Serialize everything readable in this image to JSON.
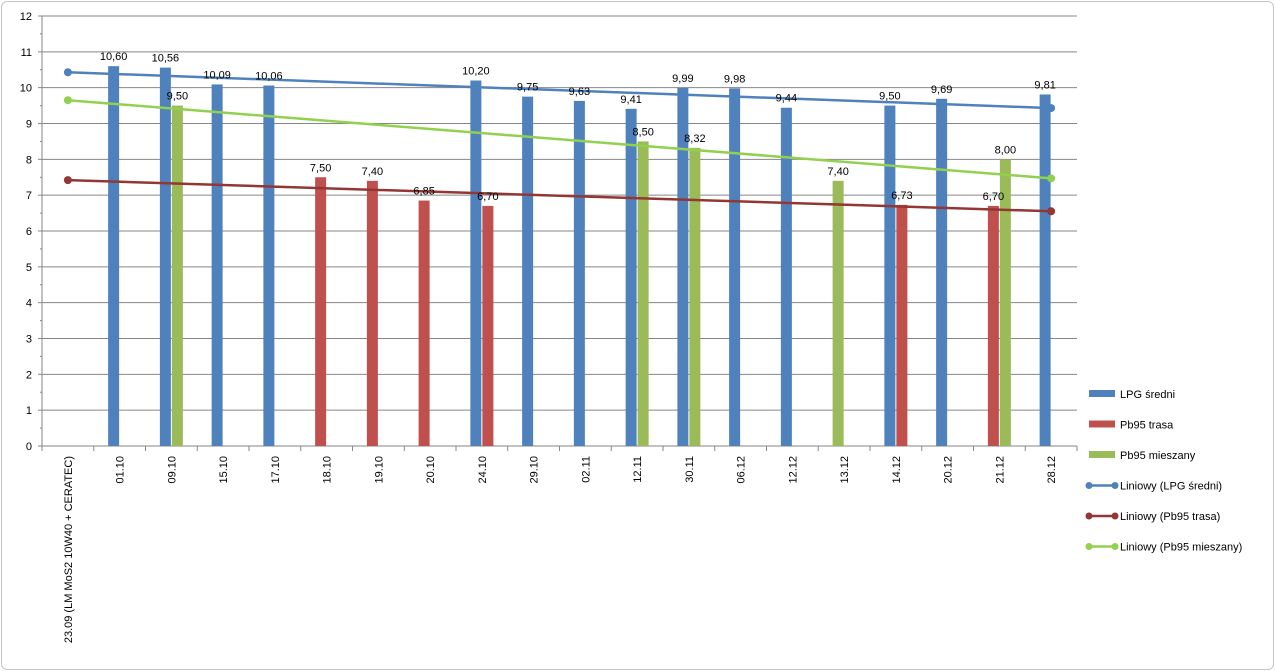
{
  "chart_data": {
    "type": "bar",
    "title": "",
    "xlabel": "",
    "ylabel": "",
    "ylim": [
      0,
      12
    ],
    "yticks": [
      0,
      1,
      2,
      3,
      4,
      5,
      6,
      7,
      8,
      9,
      10,
      11,
      12
    ],
    "ytick_labels": [
      "0",
      "1",
      "2",
      "3",
      "4",
      "5",
      "6",
      "7",
      "8",
      "9",
      "10",
      "11",
      "12"
    ],
    "grid": true,
    "legend_position": "right",
    "categories": [
      "23.09 (LM MoS2 10W40 + CERATEC)",
      "01.10",
      "09.10",
      "15.10",
      "17.10",
      "18.10",
      "19.10",
      "20.10",
      "24.10",
      "29.10",
      "02.11",
      "12.11",
      "30.11",
      "06.12",
      "12.12",
      "13.12",
      "14.12",
      "20.12",
      "21.12",
      "28.12"
    ],
    "series": [
      {
        "name": "LPG średni",
        "color": "#4f81bd",
        "values": [
          null,
          10.6,
          10.56,
          10.09,
          10.06,
          null,
          null,
          null,
          10.2,
          9.75,
          9.63,
          9.41,
          9.99,
          9.98,
          9.44,
          null,
          9.5,
          9.69,
          null,
          9.81
        ],
        "labels": [
          null,
          "10,60",
          "10,56",
          "10,09",
          "10,06",
          null,
          null,
          null,
          "10,20",
          "9,75",
          "9,63",
          "9,41",
          "9,99",
          "9,98",
          "9,44",
          null,
          "9,50",
          "9,69",
          null,
          "9,81"
        ]
      },
      {
        "name": "Pb95 trasa",
        "color": "#c0504d",
        "values": [
          null,
          null,
          null,
          null,
          null,
          7.5,
          7.4,
          6.85,
          6.7,
          null,
          null,
          null,
          null,
          null,
          null,
          null,
          6.73,
          null,
          6.7,
          null
        ],
        "labels": [
          null,
          null,
          null,
          null,
          null,
          "7,50",
          "7,40",
          "6,85",
          "6,70",
          null,
          null,
          null,
          null,
          null,
          null,
          null,
          "6,73",
          null,
          "6,70",
          null
        ]
      },
      {
        "name": "Pb95 mieszany",
        "color": "#9bbb59",
        "values": [
          null,
          null,
          9.5,
          null,
          null,
          null,
          null,
          null,
          null,
          null,
          null,
          8.5,
          8.32,
          null,
          null,
          7.4,
          null,
          null,
          8.0,
          null
        ],
        "labels": [
          null,
          null,
          "9,50",
          null,
          null,
          null,
          null,
          null,
          null,
          null,
          null,
          "8,50",
          "8,32",
          null,
          null,
          "7,40",
          null,
          null,
          "8,00",
          null
        ]
      }
    ],
    "trendlines": [
      {
        "name": "Liniowy (LPG średni)",
        "color": "#4f81bd",
        "start": 10.43,
        "end": 9.43
      },
      {
        "name": "Liniowy (Pb95 trasa)",
        "color": "#943634",
        "start": 7.42,
        "end": 6.55
      },
      {
        "name": "Liniowy (Pb95 mieszany)",
        "color": "#92d050",
        "start": 9.65,
        "end": 7.47
      }
    ]
  }
}
